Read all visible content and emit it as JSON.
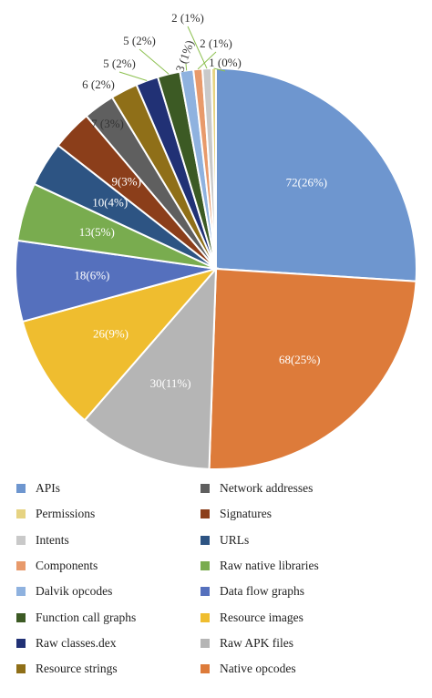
{
  "chart_data": {
    "type": "pie",
    "title": "",
    "slices": [
      {
        "category": "APIs",
        "value": 72,
        "label": "72(26%)",
        "color": "#6e96cf"
      },
      {
        "category": "Native opcodes",
        "value": 68,
        "label": "68(25%)",
        "color": "#dd7b3a"
      },
      {
        "category": "Raw APK files",
        "value": 30,
        "label": "30(11%)",
        "color": "#b5b5b5"
      },
      {
        "category": "Resource images",
        "value": 26,
        "label": "26(9%)",
        "color": "#efbd2f"
      },
      {
        "category": "Data flow graphs",
        "value": 18,
        "label": "18(6%)",
        "color": "#5570bd"
      },
      {
        "category": "Raw native libraries",
        "value": 13,
        "label": "13(5%)",
        "color": "#79ac4f"
      },
      {
        "category": "URLs",
        "value": 10,
        "label": "10(4%)",
        "color": "#2d5483"
      },
      {
        "category": "Signatures",
        "value": 9,
        "label": "9(3%)",
        "color": "#8b3e1a"
      },
      {
        "category": "Network addresses",
        "value": 7,
        "label": "7 (3%)",
        "color": "#5f5f5f"
      },
      {
        "category": "Resource strings",
        "value": 6,
        "label": "6 (2%)",
        "color": "#8f6f18"
      },
      {
        "category": "Raw classes.dex",
        "value": 5,
        "label": "5 (2%)",
        "color": "#213175"
      },
      {
        "category": "Function call graphs",
        "value": 5,
        "label": "5 (2%)",
        "color": "#3c5a24"
      },
      {
        "category": "Dalvik opcodes",
        "value": 3,
        "label": "3 (1%)",
        "color": "#8fb2df"
      },
      {
        "category": "Components",
        "value": 2,
        "label": "2 (1%)",
        "color": "#e89a6b"
      },
      {
        "category": "Intents",
        "value": 2,
        "label": "2 (1%)",
        "color": "#c9c9c9"
      },
      {
        "category": "Permissions",
        "value": 1,
        "label": "1 (0%)",
        "color": "#e6d382"
      }
    ],
    "legend": {
      "placement": "bottom",
      "columns": [
        [
          "APIs",
          "Permissions",
          "Intents",
          "Components",
          "Dalvik opcodes",
          "Function call graphs",
          "Raw classes.dex",
          "Resource strings"
        ],
        [
          "Network addresses",
          "Signatures",
          "URLs",
          "Raw native libraries",
          "Data flow graphs",
          "Resource images",
          "Raw APK files",
          "Native opcodes"
        ]
      ]
    }
  }
}
